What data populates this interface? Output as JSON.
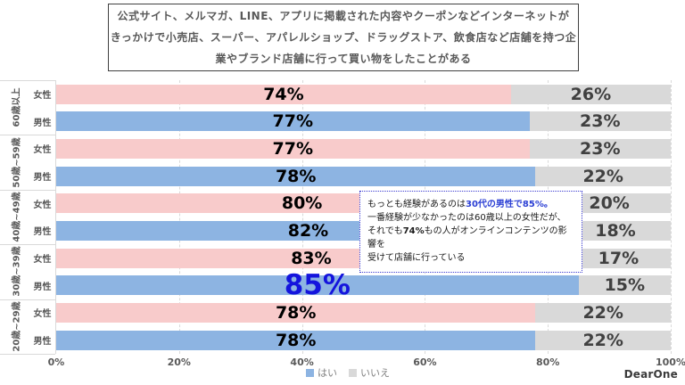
{
  "title": {
    "lines": [
      "公式サイト、メルマガ、LINE、アプリに掲載された内容やクーポンなどインターネットが",
      "きっかけで小売店、スーパー、アパレルショップ、ドラッグストア、飲食店など店舗を持つ企",
      "業やブランド店舗に行って買い物をしたことがある"
    ]
  },
  "chart_data": {
    "type": "bar",
    "orientation": "horizontal",
    "stacked": true,
    "xlim": [
      0,
      100
    ],
    "x_ticks": [
      "0%",
      "20%",
      "40%",
      "60%",
      "80%",
      "100%"
    ],
    "x_tick_values": [
      0,
      20,
      40,
      60,
      80,
      100
    ],
    "series_names": [
      "はい",
      "いいえ"
    ],
    "groups": [
      {
        "label": "60歳以上",
        "rows": [
          {
            "gender": "女性",
            "yes": 74,
            "no": 26
          },
          {
            "gender": "男性",
            "yes": 77,
            "no": 23
          }
        ]
      },
      {
        "label": "50歳~59歳",
        "rows": [
          {
            "gender": "女性",
            "yes": 77,
            "no": 23
          },
          {
            "gender": "男性",
            "yes": 78,
            "no": 22
          }
        ]
      },
      {
        "label": "40歳~49歳",
        "rows": [
          {
            "gender": "女性",
            "yes": 80,
            "no": 20
          },
          {
            "gender": "男性",
            "yes": 82,
            "no": 18
          }
        ]
      },
      {
        "label": "30歳~39歳",
        "rows": [
          {
            "gender": "女性",
            "yes": 83,
            "no": 17
          },
          {
            "gender": "男性",
            "yes": 85,
            "no": 15,
            "highlight": true
          }
        ]
      },
      {
        "label": "20歳~29歳",
        "rows": [
          {
            "gender": "女性",
            "yes": 78,
            "no": 22
          },
          {
            "gender": "男性",
            "yes": 78,
            "no": 22
          }
        ]
      }
    ],
    "colors": {
      "female_yes": "#F8CBCB",
      "male_yes": "#8DB4E2",
      "no": "#D9D9D9",
      "highlight_text": "#1414DD"
    }
  },
  "legend": {
    "items": [
      {
        "label": "はい",
        "color": "#8DB4E2"
      },
      {
        "label": "いいえ",
        "color": "#D9D9D9"
      }
    ]
  },
  "annotation": {
    "segments": [
      {
        "text": "もっとも経験があるのは"
      },
      {
        "text": "30代の男性で85%。",
        "style": "highlight"
      },
      {
        "br": true
      },
      {
        "text": "一番経験が少なかったのは60歳以上の女性だが、"
      },
      {
        "br": true
      },
      {
        "text": "それでも"
      },
      {
        "text": "74%",
        "style": "bold"
      },
      {
        "text": "もの人がオンラインコンテンツの影響を"
      },
      {
        "br": true
      },
      {
        "text": "受けて店舗に行っている"
      }
    ]
  },
  "logo": {
    "text": "DearOne"
  }
}
